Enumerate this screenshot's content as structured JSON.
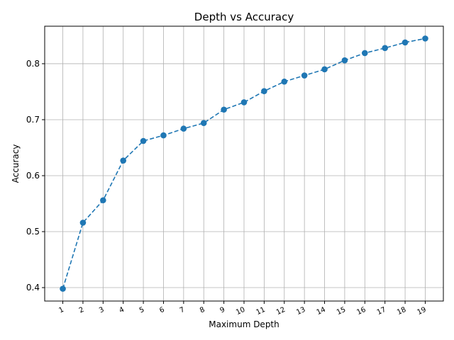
{
  "chart_data": {
    "type": "line",
    "title": "Depth vs Accuracy",
    "xlabel": "Maximum Depth",
    "ylabel": "Accuracy",
    "x": [
      1,
      2,
      3,
      4,
      5,
      6,
      7,
      8,
      9,
      10,
      11,
      12,
      13,
      14,
      15,
      16,
      17,
      18,
      19
    ],
    "series": [
      {
        "values": [
          0.398,
          0.516,
          0.556,
          0.627,
          0.662,
          0.672,
          0.684,
          0.694,
          0.718,
          0.731,
          0.751,
          0.768,
          0.779,
          0.79,
          0.806,
          0.819,
          0.828,
          0.838,
          0.845
        ],
        "color": "#1f77b4",
        "line_style": "dashed",
        "marker": "circle"
      }
    ],
    "xlim": [
      0.1,
      19.9
    ],
    "ylim": [
      0.376,
      0.867
    ],
    "yticks": [
      0.4,
      0.5,
      0.6,
      0.7,
      0.8
    ],
    "ytick_labels": [
      "0.4",
      "0.5",
      "0.6",
      "0.7",
      "0.8"
    ],
    "xtick_labels": [
      "1",
      "2",
      "3",
      "4",
      "5",
      "6",
      "7",
      "8",
      "9",
      "10",
      "11",
      "12",
      "13",
      "14",
      "15",
      "16",
      "17",
      "18",
      "19"
    ],
    "grid": true
  }
}
